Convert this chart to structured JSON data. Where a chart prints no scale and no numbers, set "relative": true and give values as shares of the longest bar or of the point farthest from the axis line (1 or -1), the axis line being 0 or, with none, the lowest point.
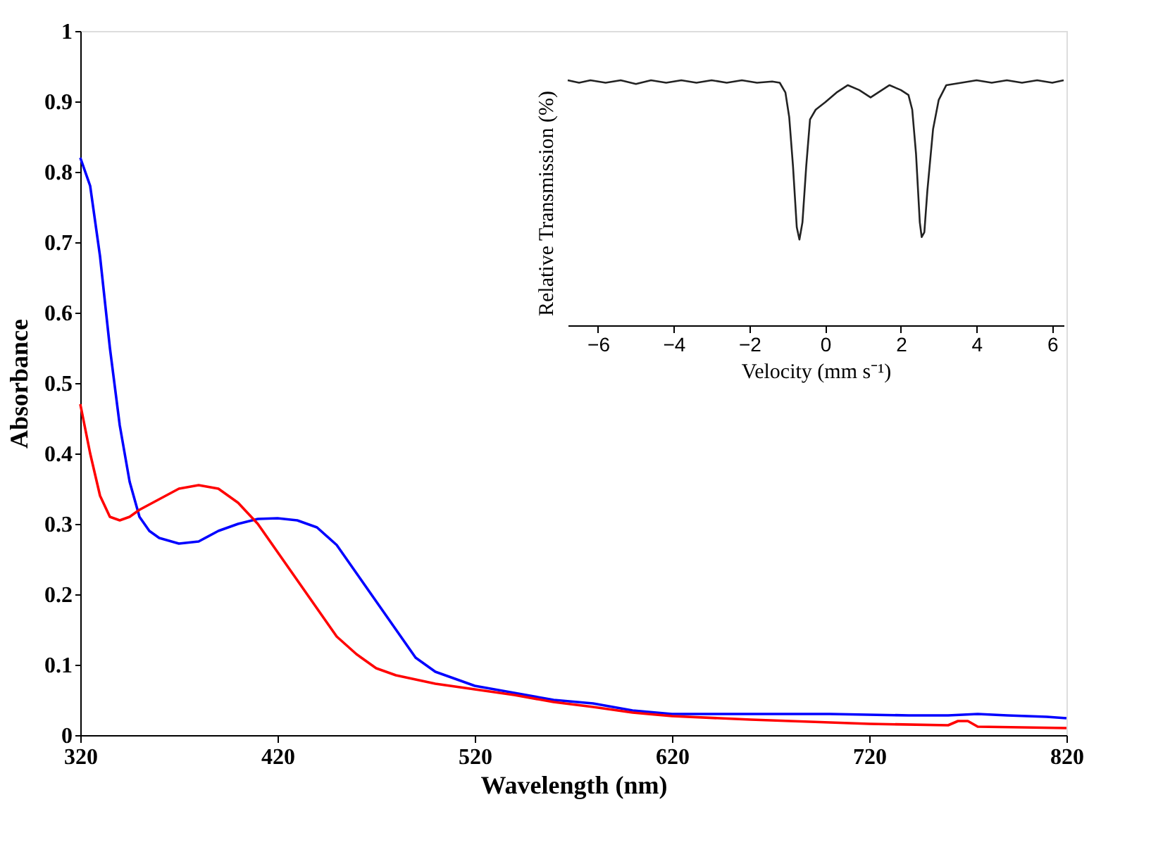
{
  "chart_data": [
    {
      "type": "line",
      "xlabel": "Wavelength (nm)",
      "ylabel": "Absorbance",
      "xlim": [
        320,
        820
      ],
      "xticks": [
        320,
        420,
        520,
        620,
        720,
        820
      ],
      "ylim": [
        0,
        1
      ],
      "yticks": [
        {
          "value": 0,
          "label": "0"
        },
        0.1,
        0.2,
        0.3,
        0.4,
        0.5,
        0.6,
        0.7,
        0.8,
        0.9,
        {
          "value": 1,
          "label": "1"
        }
      ],
      "grid": false,
      "legend": false,
      "marker": "none",
      "line_style": "solid",
      "series": [
        {
          "color": "#0000ff",
          "x": [
            320,
            325,
            330,
            335,
            340,
            345,
            350,
            355,
            360,
            370,
            380,
            390,
            400,
            410,
            420,
            430,
            440,
            450,
            460,
            470,
            480,
            490,
            500,
            510,
            520,
            540,
            560,
            580,
            600,
            620,
            660,
            700,
            740,
            760,
            775,
            790,
            810,
            820
          ],
          "values": [
            0.82,
            0.78,
            0.68,
            0.55,
            0.44,
            0.36,
            0.31,
            0.29,
            0.28,
            0.272,
            0.275,
            0.29,
            0.3,
            0.307,
            0.308,
            0.305,
            0.295,
            0.27,
            0.23,
            0.19,
            0.15,
            0.11,
            0.09,
            0.08,
            0.07,
            0.06,
            0.05,
            0.045,
            0.035,
            0.03,
            0.03,
            0.03,
            0.028,
            0.028,
            0.03,
            0.028,
            0.026,
            0.024
          ]
        },
        {
          "color": "#ff0000",
          "x": [
            320,
            325,
            330,
            335,
            340,
            345,
            350,
            360,
            370,
            380,
            390,
            400,
            410,
            420,
            430,
            440,
            450,
            460,
            470,
            480,
            500,
            520,
            540,
            560,
            580,
            600,
            620,
            660,
            700,
            720,
            760,
            765,
            770,
            775,
            820
          ],
          "values": [
            0.47,
            0.4,
            0.34,
            0.31,
            0.305,
            0.31,
            0.32,
            0.335,
            0.35,
            0.355,
            0.35,
            0.33,
            0.3,
            0.26,
            0.22,
            0.18,
            0.14,
            0.115,
            0.095,
            0.085,
            0.073,
            0.065,
            0.057,
            0.047,
            0.04,
            0.032,
            0.027,
            0.022,
            0.018,
            0.016,
            0.014,
            0.02,
            0.02,
            0.012,
            0.01
          ]
        }
      ]
    },
    {
      "type": "line",
      "relative": true,
      "xlabel": "Velocity (mm s⁻¹)",
      "ylabel": "Relative Transmission (%)",
      "xlim": [
        -6.8,
        6.3
      ],
      "xticks": [
        -6,
        -4,
        -2,
        0,
        2,
        4,
        6
      ],
      "grid": false,
      "legend": false,
      "marker": "none",
      "line_style": "solid",
      "series": [
        {
          "color": "#222222",
          "x": [
            -6.8,
            -6.5,
            -6.2,
            -5.8,
            -5.4,
            -5.0,
            -4.6,
            -4.2,
            -3.8,
            -3.4,
            -3.0,
            -2.6,
            -2.2,
            -1.8,
            -1.4,
            -1.2,
            -1.05,
            -0.95,
            -0.85,
            -0.75,
            -0.68,
            -0.6,
            -0.5,
            -0.4,
            -0.25,
            0,
            0.3,
            0.6,
            0.9,
            1.2,
            1.4,
            1.7,
            2.0,
            2.2,
            2.3,
            2.4,
            2.5,
            2.55,
            2.62,
            2.7,
            2.85,
            3.0,
            3.2,
            3.6,
            4.0,
            4.4,
            4.8,
            5.2,
            5.6,
            6.0,
            6.3
          ],
          "values": [
            1.0,
            0.99,
            1.0,
            0.99,
            1.0,
            0.985,
            1.0,
            0.99,
            1.0,
            0.99,
            1.0,
            0.99,
            1.0,
            0.99,
            0.995,
            0.99,
            0.95,
            0.85,
            0.65,
            0.4,
            0.35,
            0.42,
            0.65,
            0.84,
            0.88,
            0.91,
            0.95,
            0.98,
            0.96,
            0.93,
            0.95,
            0.98,
            0.96,
            0.94,
            0.88,
            0.7,
            0.42,
            0.36,
            0.38,
            0.55,
            0.8,
            0.92,
            0.98,
            0.99,
            1.0,
            0.99,
            1.0,
            0.99,
            1.0,
            0.99,
            1.0
          ]
        }
      ]
    }
  ]
}
